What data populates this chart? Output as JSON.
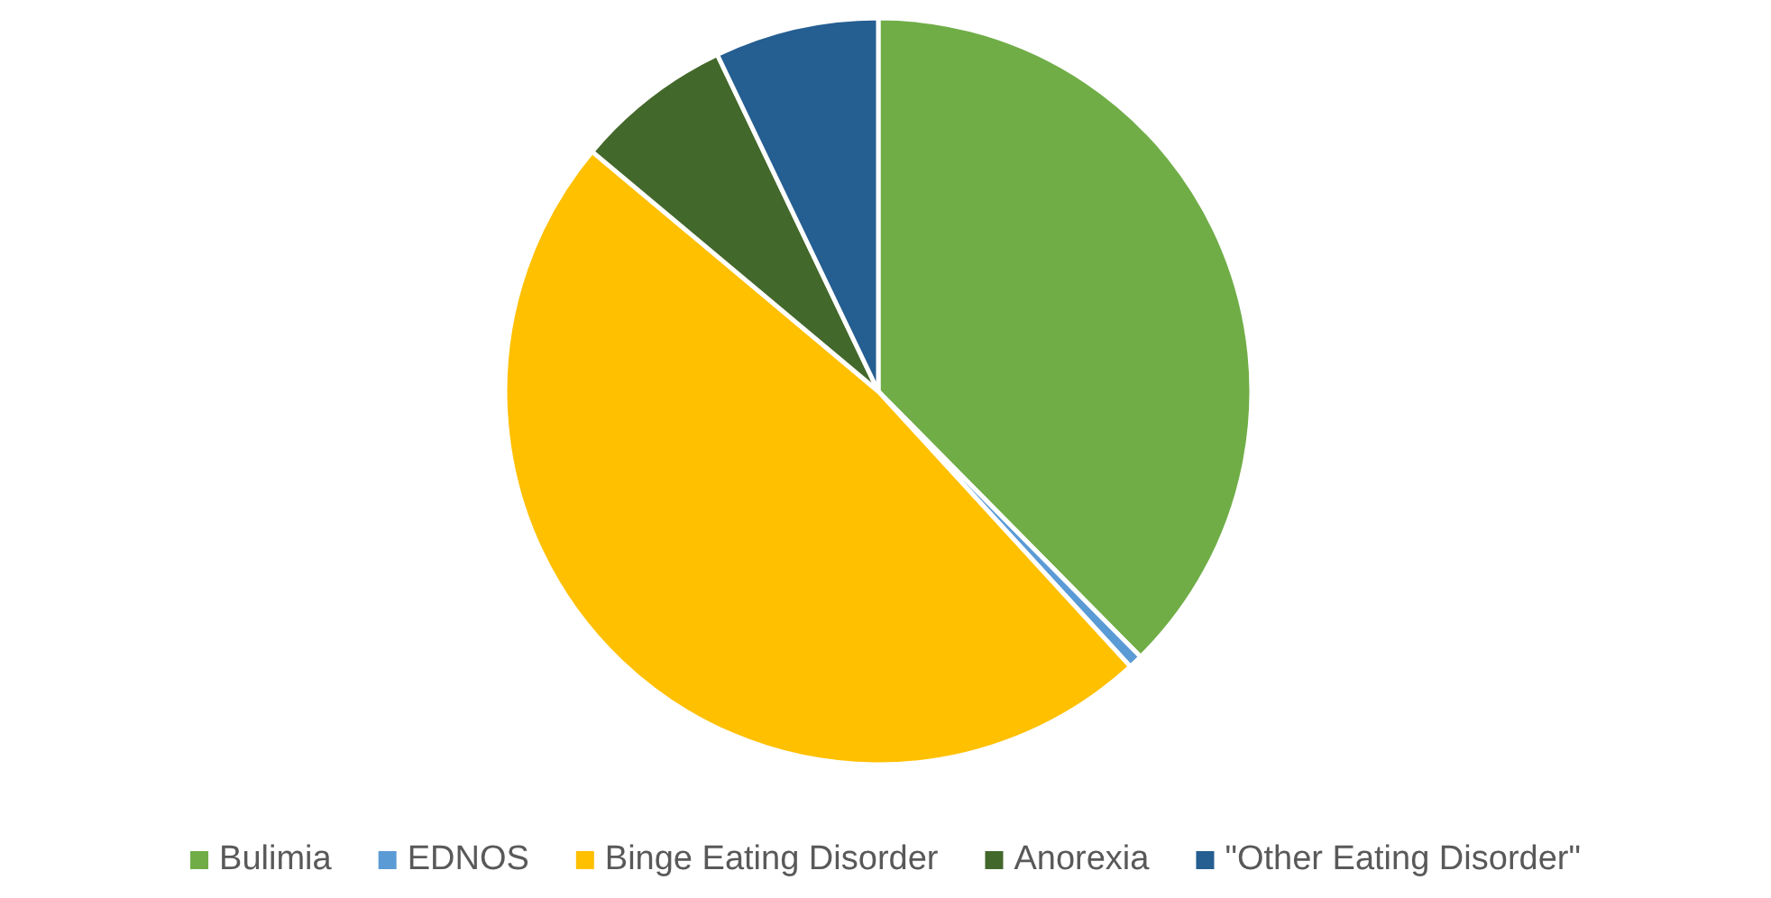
{
  "chart_data": {
    "type": "pie",
    "categories": [
      "Bulimia",
      "EDNOS",
      "Binge Eating Disorder",
      "Anorexia",
      "\"Other Eating Disorder\""
    ],
    "values": [
      37.6,
      0.6,
      47.9,
      6.8,
      7.1
    ],
    "colors": [
      "#70ad47",
      "#5b9bd5",
      "#ffc000",
      "#43682b",
      "#255e91"
    ],
    "legend": "bottom"
  }
}
